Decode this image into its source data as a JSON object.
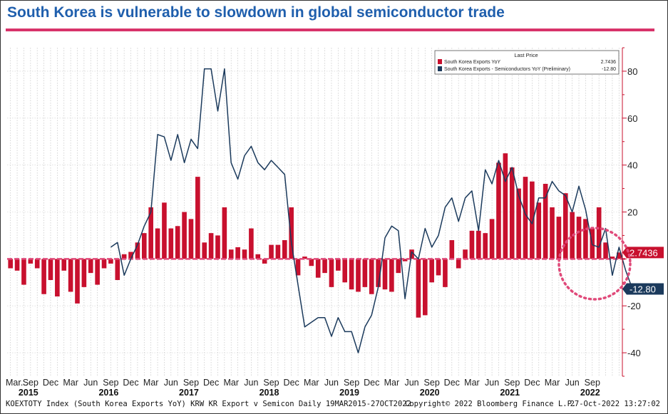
{
  "header": {
    "title": "South Korea is vulnerable to slowdown in global semiconductor trade"
  },
  "footer": {
    "left": "KOEXTOTY Index (South Korea Exports YoY) KRW KR Export v Semicon  Daily 19MAR2015-27OCT2022",
    "copyright": "Copyright© 2022 Bloomberg Finance L.P.",
    "timestamp": "27-Oct-2022 13:27:02"
  },
  "chart_data": {
    "type": "bar",
    "title": "South Korea is vulnerable to slowdown in global semiconductor trade",
    "ylim": [
      -50,
      90
    ],
    "yticks": [
      80,
      60,
      40,
      20,
      -20,
      -40
    ],
    "month_labels": [
      "Mar...",
      "Sep",
      "Dec",
      "Mar",
      "Jun",
      "Sep",
      "Dec",
      "Mar",
      "Jun",
      "Sep",
      "Dec",
      "Mar",
      "Jun",
      "Sep",
      "Dec",
      "Mar",
      "Jun",
      "Sep",
      "Dec",
      "Mar",
      "Jun",
      "Sep",
      "Dec",
      "Mar",
      "Jun",
      "Sep",
      "Dec",
      "Mar",
      "Jun",
      "Sep"
    ],
    "year_labels": [
      "2015",
      "2016",
      "2017",
      "2018",
      "2019",
      "2020",
      "2021",
      "2022"
    ],
    "legend": {
      "header": "Last Price",
      "items": [
        {
          "name": "South Korea Exports YoY",
          "value": "2.7436",
          "color": "#C8102E"
        },
        {
          "name": "South Korea Exports - Semiconductors YoY (Preliminary)",
          "value": "-12.80",
          "color": "#1B3A5C"
        }
      ]
    },
    "last_value_tags": [
      {
        "label": "2.7436",
        "value": 2.7436,
        "color": "#C8102E"
      },
      {
        "label": "-12.80",
        "value": -12.8,
        "color": "#1B3A5C"
      }
    ],
    "series": [
      {
        "name": "South Korea Exports YoY",
        "type": "bar",
        "start": "2015-03",
        "values": [
          -4,
          -5,
          -11,
          -2,
          -4,
          -15,
          -9,
          -16,
          -5,
          -14,
          -19,
          -12,
          -6,
          -11,
          -4,
          -2,
          -9,
          2,
          3,
          7,
          11,
          22,
          13,
          24,
          13,
          14,
          20,
          17,
          35,
          7,
          11,
          10,
          22,
          4,
          5,
          4,
          13,
          2,
          -2,
          6,
          6,
          8,
          22,
          -7,
          1,
          -3,
          -8,
          -6,
          -12,
          -5,
          -10,
          -13,
          -14,
          -12,
          -15,
          -12,
          -13,
          -14,
          -6,
          -1,
          4,
          -25,
          -24,
          -10,
          -7,
          -12,
          8,
          -4,
          4,
          12,
          12,
          11,
          17,
          41,
          45,
          39,
          30,
          35,
          33,
          24,
          32,
          22,
          18,
          28,
          20,
          18,
          17,
          13,
          22,
          7,
          1,
          2.7436
        ]
      },
      {
        "name": "South Korea Exports - Semiconductors YoY (Preliminary)",
        "type": "line",
        "start": "2016-06",
        "values": [
          5,
          7,
          -7,
          0,
          6,
          14,
          20,
          53,
          52,
          42,
          53,
          41,
          51,
          47,
          81,
          81,
          63,
          81,
          41,
          34,
          44,
          48,
          41,
          38,
          42,
          39,
          36,
          7,
          -11,
          -29,
          -27,
          -25,
          -25,
          -33,
          -25,
          -31,
          -31,
          -40,
          -29,
          -24,
          -12,
          9,
          14,
          12,
          -17,
          3,
          0,
          13,
          5,
          10,
          22,
          26,
          16,
          26,
          29,
          12,
          38,
          32,
          42,
          33,
          39,
          27,
          19,
          15,
          26,
          26,
          33,
          29,
          27,
          20,
          31,
          21,
          6,
          5,
          13,
          -7,
          5,
          -5,
          -12.8
        ]
      }
    ]
  }
}
